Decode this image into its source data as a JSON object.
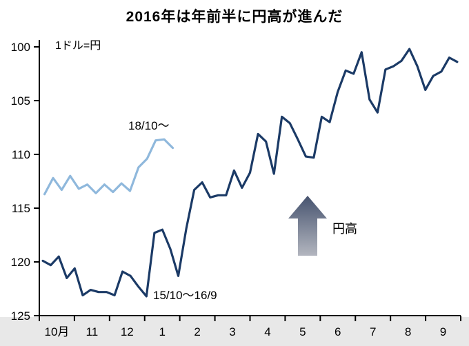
{
  "title": "2016年は年前半に円高が進んだ",
  "unit_label": "1ドル=円",
  "annotations": {
    "light_series_label": "18/10～",
    "dark_series_label": "15/10～16/9",
    "arrow_label": "円高"
  },
  "colors": {
    "dark_line": "#1b3a66",
    "light_line": "#8fb8dc",
    "axis": "#000000",
    "tick_text": "#000000",
    "band": "#e8e8e8",
    "arrow_top": "#46536f",
    "arrow_bottom": "#b3b6bf"
  },
  "chart_data": {
    "type": "line",
    "title": "2016年は年前半に円高が進んだ",
    "ylabel": "1ドル=円",
    "y_axis": {
      "ticks": [
        100,
        105,
        110,
        115,
        120,
        125
      ],
      "range": [
        100,
        125
      ],
      "inverted": true
    },
    "x_axis": {
      "tick_labels": [
        "10月",
        "11",
        "12",
        "1",
        "2",
        "3",
        "4",
        "5",
        "6",
        "7",
        "8",
        "9"
      ],
      "months": 12
    },
    "grid": false,
    "legend_position": "inline-annotations",
    "series": [
      {
        "name": "15/10～16/9",
        "color_key": "dark_line",
        "x_start": 0.1,
        "x_end": 11.9,
        "values": [
          119.9,
          120.3,
          119.5,
          121.5,
          120.6,
          123.1,
          122.6,
          122.8,
          122.8,
          123.1,
          120.9,
          121.3,
          122.3,
          123.2,
          117.3,
          117.0,
          118.8,
          121.3,
          116.9,
          113.3,
          112.6,
          114.0,
          113.8,
          113.8,
          111.5,
          113.1,
          111.7,
          108.1,
          108.8,
          111.8,
          106.5,
          107.1,
          108.6,
          110.2,
          110.3,
          106.5,
          107.0,
          104.2,
          102.2,
          102.5,
          100.5,
          104.9,
          106.1,
          102.1,
          101.8,
          101.3,
          100.2,
          101.8,
          104.0,
          102.7,
          102.3,
          101.0,
          101.4
        ]
      },
      {
        "name": "18/10～",
        "color_key": "light_line",
        "x_start": 0.15,
        "x_end": 3.8,
        "values": [
          113.7,
          112.2,
          113.3,
          112.0,
          113.2,
          112.8,
          113.6,
          112.8,
          113.5,
          112.7,
          113.4,
          111.2,
          110.4,
          108.7,
          108.6,
          109.4
        ]
      }
    ],
    "annotation_arrow": {
      "label": "円高",
      "direction": "up"
    }
  }
}
